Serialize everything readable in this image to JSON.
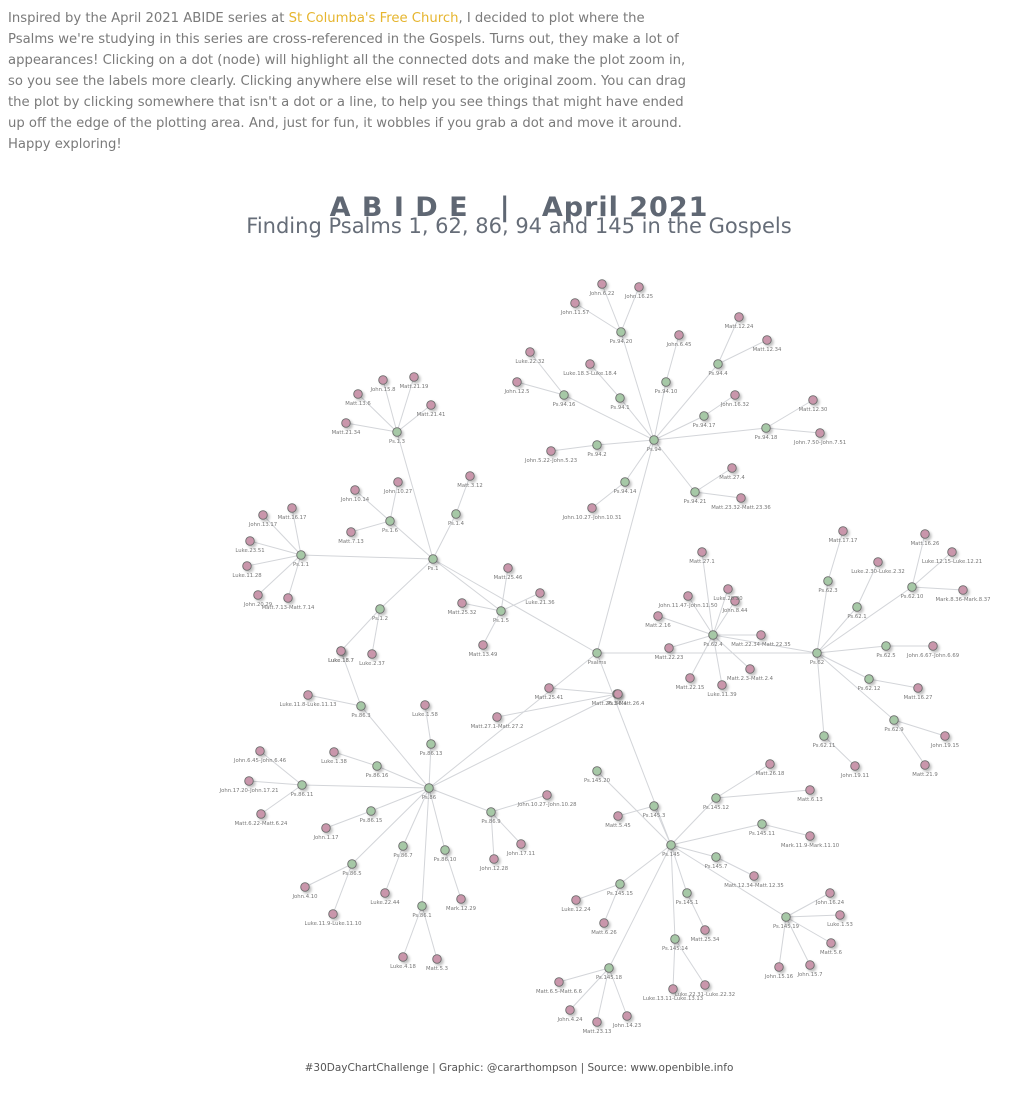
{
  "intro": {
    "text_before_link": "Inspired by the April 2021 ABIDE series at ",
    "link_text": "St Columba's Free Church",
    "text_after_link": ", I decided to plot where the Psalms we're studying in this series are cross-referenced in the Gospels. Turns out, they make a lot of appearances! Clicking on a dot (node) will highlight all the connected dots and make the plot zoom in, so you see the labels more clearly. Clicking anywhere else will reset to the original zoom. You can drag the plot by clicking somewhere that isn't a dot or a line, to help you see things that might have ended up off the edge of the plotting area. And, just for fun, it wobbles if you grab a dot and move it around. Happy exploring!"
  },
  "chart": {
    "title": "A B I D E   |   April 2021",
    "subtitle": "Finding Psalms 1, 62, 86, 94 and 145 in the Gospels",
    "caption": "#30DayChartChallenge | Graphic: @cararthompson | Source: www.openbible.info"
  },
  "colors": {
    "psalm_node": "#a6c8a6",
    "gospel_node": "#c996ab",
    "edge": "#d3d5d9",
    "link": "#e6b52e"
  },
  "chart_data": {
    "type": "network",
    "hub": "Psalms",
    "psalms": [
      {
        "id": "Ps.1",
        "verses": [
          {
            "id": "Ps.1.1",
            "refs": [
              "Matt.16.17",
              "John.13.17",
              "Luke.23.51",
              "Luke.11.28",
              "John.20.29",
              "Matt.7.13-Matt.7.14"
            ]
          },
          {
            "id": "Ps.1.2",
            "refs": [
              "Luke.18.7",
              "Luke.2.37"
            ]
          },
          {
            "id": "Ps.1.3",
            "refs": [
              "John.15.8",
              "Matt.21.19",
              "Matt.13.6",
              "Matt.21.41",
              "Matt.21.34"
            ]
          },
          {
            "id": "Ps.1.4",
            "refs": [
              "Matt.3.12"
            ]
          },
          {
            "id": "Ps.1.5",
            "refs": [
              "Matt.25.46",
              "Luke.21.36",
              "Matt.25.32",
              "Matt.13.49"
            ]
          },
          {
            "id": "Ps.1.6",
            "refs": [
              "John.10.14",
              "John.10.27",
              "Matt.7.13"
            ]
          }
        ]
      },
      {
        "id": "Ps.62",
        "verses": [
          {
            "id": "Ps.62.1",
            "refs": [
              "Luke.2.30-Luke.2.32"
            ]
          },
          {
            "id": "Ps.62.3",
            "refs": [
              "Matt.17.17"
            ]
          },
          {
            "id": "Ps.62.4",
            "refs": [
              "John.11.47-John.11.50",
              "Matt.2.16",
              "John.8.44",
              "Matt.22.34-Matt.22.35",
              "Matt.2.3-Matt.2.4",
              "Luke.11.39",
              "Matt.22.15",
              "Matt.22.23",
              "Matt.27.1",
              "Luke.20.20"
            ]
          },
          {
            "id": "Ps.62.5",
            "refs": [
              "John.6.67-John.6.69"
            ]
          },
          {
            "id": "Ps.62.9",
            "refs": [
              "John.19.15",
              "Matt.21.9"
            ]
          },
          {
            "id": "Ps.62.10",
            "refs": [
              "Matt.16.26",
              "Luke.12.15-Luke.12.21",
              "Mark.8.36-Mark.8.37"
            ]
          },
          {
            "id": "Ps.62.11",
            "refs": [
              "John.19.11"
            ]
          },
          {
            "id": "Ps.62.12",
            "refs": [
              "Matt.16.27"
            ]
          }
        ]
      },
      {
        "id": "Ps.86",
        "verses": [
          {
            "id": "Ps.86.1",
            "refs": [
              "Luke.4.18",
              "Matt.5.3"
            ]
          },
          {
            "id": "Ps.86.3",
            "refs": [
              "Luke.18.7",
              "Luke.11.8-Luke.11.13"
            ]
          },
          {
            "id": "Ps.86.4",
            "refs": [
              "Matt.25.41",
              "Matt.26.3-Matt.26.4",
              "Matt.27.1-Matt.27.2"
            ]
          },
          {
            "id": "Ps.86.5",
            "refs": [
              "John.4.10",
              "Luke.11.9-Luke.11.10"
            ]
          },
          {
            "id": "Ps.86.7",
            "refs": [
              "Luke.22.44"
            ]
          },
          {
            "id": "Ps.86.9",
            "refs": [
              "John.12.28",
              "John.17.11",
              "John.10.27-John.10.28"
            ]
          },
          {
            "id": "Ps.86.10",
            "refs": [
              "Mark.12.29"
            ]
          },
          {
            "id": "Ps.86.11",
            "refs": [
              "John.6.45-John.6.46",
              "John.17.20-John.17.21",
              "Matt.6.22-Matt.6.24"
            ]
          },
          {
            "id": "Ps.86.13",
            "refs": [
              "Luke.1.58"
            ]
          },
          {
            "id": "Ps.86.15",
            "refs": [
              "John.1.17"
            ]
          },
          {
            "id": "Ps.86.16",
            "refs": [
              "Luke.1.38"
            ]
          }
        ]
      },
      {
        "id": "Ps.94",
        "verses": [
          {
            "id": "Ps.94.1",
            "refs": [
              "Luke.18.3-Luke.18.4"
            ]
          },
          {
            "id": "Ps.94.2",
            "refs": [
              "John.5.22-John.5.23"
            ]
          },
          {
            "id": "Ps.94.4",
            "refs": [
              "Matt.12.24",
              "Matt.12.34"
            ]
          },
          {
            "id": "Ps.94.10",
            "refs": [
              "John.6.45"
            ]
          },
          {
            "id": "Ps.94.14",
            "refs": [
              "John.10.27-John.10.31"
            ]
          },
          {
            "id": "Ps.94.16",
            "refs": [
              "Luke.22.32",
              "John.12.5"
            ]
          },
          {
            "id": "Ps.94.17",
            "refs": [
              "John.16.32"
            ]
          },
          {
            "id": "Ps.94.18",
            "refs": [
              "Matt.12.30",
              "John.7.50-John.7.51"
            ]
          },
          {
            "id": "Ps.94.20",
            "refs": [
              "John.6.22",
              "John.16.25",
              "John.11.57"
            ]
          },
          {
            "id": "Ps.94.21",
            "refs": [
              "Matt.27.4",
              "Matt.23.32-Matt.23.36"
            ]
          }
        ]
      },
      {
        "id": "Ps.145",
        "verses": [
          {
            "id": "Ps.145.1",
            "refs": [
              "Matt.25.34"
            ]
          },
          {
            "id": "Ps.145.3",
            "refs": [
              "Matt.5.45"
            ]
          },
          {
            "id": "Ps.145.7",
            "refs": [
              "Matt.12.34-Matt.12.35"
            ]
          },
          {
            "id": "Ps.145.11",
            "refs": [
              "Mark.11.9-Mark.11.10"
            ]
          },
          {
            "id": "Ps.145.12",
            "refs": [
              "Matt.26.18",
              "Matt.6.13"
            ]
          },
          {
            "id": "Ps.145.14",
            "refs": [
              "Luke.13.11-Luke.13.13",
              "Luke.22.31-Luke.22.32"
            ]
          },
          {
            "id": "Ps.145.15",
            "refs": [
              "Luke.12.24",
              "Matt.6.26"
            ]
          },
          {
            "id": "Ps.145.18",
            "refs": [
              "Matt.6.5-Matt.6.6",
              "John.4.24",
              "Matt.23.13",
              "John.14.23"
            ]
          },
          {
            "id": "Ps.145.19",
            "refs": [
              "John.16.24",
              "Luke.1.53",
              "Matt.5.6",
              "John.15.16",
              "John.15.7"
            ]
          },
          {
            "id": "Ps.145.20"
          }
        ]
      }
    ]
  }
}
